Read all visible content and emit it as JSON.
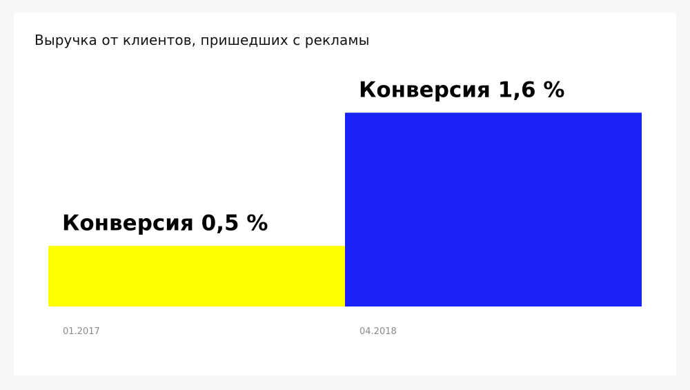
{
  "chart_data": {
    "type": "bar",
    "title": "Выручка от клиентов, пришедших с рекламы",
    "xlabel": "",
    "ylabel": "",
    "categories": [
      "01.2017",
      "04.2018"
    ],
    "values": [
      0.5,
      1.6
    ],
    "data_labels": [
      "Конверсия 0,5 %",
      "Конверсия 1,6 %"
    ],
    "colors": [
      "#ffff00",
      "#1a22f5"
    ],
    "ylim": [
      0,
      2.2
    ],
    "grid": false,
    "legend": "none"
  }
}
